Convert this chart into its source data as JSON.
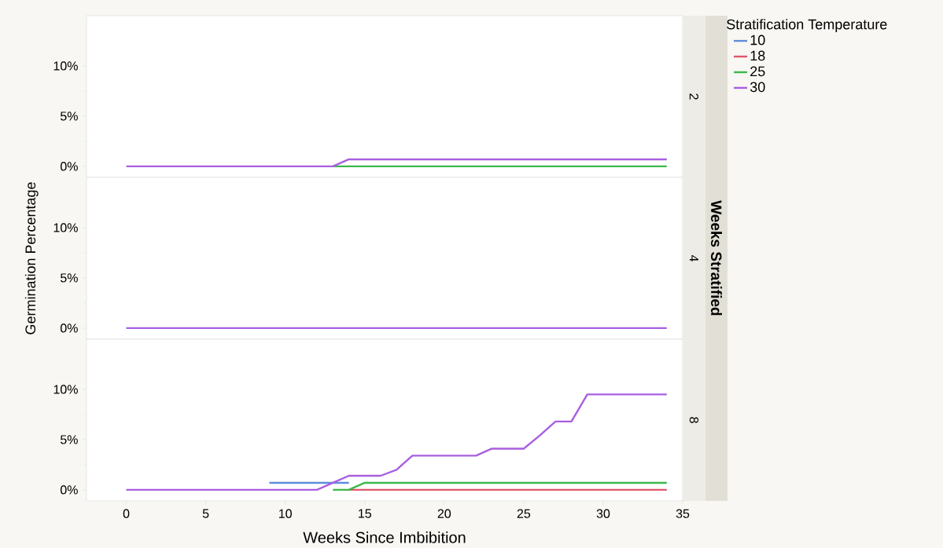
{
  "chart_data": [
    {
      "type": "line",
      "annotations": [
        "2"
      ],
      "legend_title": "Stratification Temperature",
      "legend": "right",
      "tick_labels": "y",
      "x": [
        0,
        1,
        2,
        3,
        4,
        5,
        6,
        7,
        8,
        9,
        10,
        11,
        12,
        13,
        14,
        15,
        16,
        17,
        18,
        19,
        20,
        21,
        22,
        23,
        24,
        25,
        26,
        27,
        28,
        29,
        30,
        31,
        32,
        33,
        34
      ],
      "xlim": [
        -2.5,
        35
      ],
      "ylim": [
        -1.1,
        15
      ],
      "yticks": [
        {
          "value": 0,
          "label": "0%"
        },
        {
          "value": 5,
          "label": "5%"
        },
        {
          "value": 10,
          "label": "10%"
        }
      ],
      "series": [
        {
          "name": "10",
          "color": "#5b8ddc",
          "values": [
            null,
            null,
            null,
            null,
            null,
            null,
            null,
            null,
            null,
            null,
            null,
            null,
            null,
            null,
            null,
            null,
            null,
            null,
            null,
            null,
            null,
            null,
            null,
            null,
            null,
            null,
            null,
            null,
            null,
            null,
            null,
            null,
            null,
            null,
            null
          ]
        },
        {
          "name": "18",
          "color": "#e0566a",
          "values": [
            null,
            null,
            null,
            null,
            null,
            null,
            null,
            null,
            null,
            null,
            null,
            null,
            null,
            null,
            null,
            null,
            null,
            null,
            null,
            null,
            null,
            null,
            null,
            null,
            null,
            null,
            null,
            null,
            null,
            null,
            null,
            null,
            null,
            null,
            null
          ]
        },
        {
          "name": "25",
          "color": "#3cb84a",
          "values": [
            null,
            null,
            null,
            null,
            null,
            null,
            null,
            null,
            null,
            null,
            null,
            null,
            null,
            0,
            0,
            0,
            0,
            0,
            0,
            0,
            0,
            0,
            0,
            0,
            0,
            0,
            0,
            0,
            0,
            0,
            0,
            0,
            0,
            0,
            0
          ]
        },
        {
          "name": "30",
          "color": "#a85fe0",
          "values": [
            0,
            0,
            0,
            0,
            0,
            0,
            0,
            0,
            0,
            0,
            0,
            0,
            0,
            0,
            0.7,
            0.7,
            0.7,
            0.7,
            0.7,
            0.7,
            0.7,
            0.7,
            0.7,
            0.7,
            0.7,
            0.7,
            0.7,
            0.7,
            0.7,
            0.7,
            0.7,
            0.7,
            0.7,
            0.7,
            0.7
          ]
        }
      ]
    },
    {
      "type": "line",
      "ylabel": "Germination Percentage",
      "annotations": [
        "4",
        "Weeks Stratified"
      ],
      "tick_labels": "y",
      "x": [
        0,
        1,
        2,
        3,
        4,
        5,
        6,
        7,
        8,
        9,
        10,
        11,
        12,
        13,
        14,
        15,
        16,
        17,
        18,
        19,
        20,
        21,
        22,
        23,
        24,
        25,
        26,
        27,
        28,
        29,
        30,
        31,
        32,
        33,
        34
      ],
      "xlim": [
        -2.5,
        35
      ],
      "ylim": [
        -1.1,
        15
      ],
      "yticks": [
        {
          "value": 0,
          "label": "0%"
        },
        {
          "value": 5,
          "label": "5%"
        },
        {
          "value": 10,
          "label": "10%"
        }
      ],
      "series": [
        {
          "color": "#a85fe0",
          "values": [
            0,
            0,
            0,
            0,
            0,
            0,
            0,
            0,
            0,
            0,
            0,
            0,
            0,
            0,
            0,
            0,
            0,
            0,
            0,
            0,
            0,
            0,
            0,
            0,
            0,
            0,
            0,
            0,
            0,
            0,
            0,
            0,
            0,
            0,
            0
          ]
        }
      ]
    },
    {
      "type": "line",
      "annotations": [
        "8"
      ],
      "xlabel": "Weeks Since Imbibition",
      "x": [
        0,
        1,
        2,
        3,
        4,
        5,
        6,
        7,
        8,
        9,
        10,
        11,
        12,
        13,
        14,
        15,
        16,
        17,
        18,
        19,
        20,
        21,
        22,
        23,
        24,
        25,
        26,
        27,
        28,
        29,
        30,
        31,
        32,
        33,
        34
      ],
      "xlim": [
        -2.5,
        35
      ],
      "ylim": [
        -1.1,
        15
      ],
      "xticks": [
        0,
        5,
        10,
        15,
        20,
        25,
        30,
        35
      ],
      "yticks": [
        {
          "value": 0,
          "label": "0%"
        },
        {
          "value": 5,
          "label": "5%"
        },
        {
          "value": 10,
          "label": "10%"
        }
      ],
      "series": [
        {
          "color": "#5b8ddc",
          "values": [
            null,
            null,
            null,
            null,
            null,
            null,
            null,
            null,
            null,
            0.7,
            0.7,
            0.7,
            0.7,
            0.7,
            0.7,
            null,
            null,
            null,
            null,
            null,
            null,
            null,
            null,
            null,
            null,
            null,
            null,
            null,
            null,
            null,
            null,
            null,
            null,
            null,
            null
          ]
        },
        {
          "color": "#e0566a",
          "values": [
            null,
            null,
            null,
            null,
            null,
            null,
            null,
            null,
            null,
            null,
            null,
            null,
            null,
            null,
            0,
            0,
            0,
            0,
            0,
            0,
            0,
            0,
            0,
            0,
            0,
            0,
            0,
            0,
            0,
            0,
            0,
            0,
            0,
            0,
            0
          ]
        },
        {
          "color": "#3cb84a",
          "values": [
            null,
            null,
            null,
            null,
            null,
            null,
            null,
            null,
            null,
            null,
            null,
            null,
            null,
            0,
            0,
            0.7,
            0.7,
            0.7,
            0.7,
            0.7,
            0.7,
            0.7,
            0.7,
            0.7,
            0.7,
            0.7,
            0.7,
            0.7,
            0.7,
            0.7,
            0.7,
            0.7,
            0.7,
            0.7,
            0.7
          ]
        },
        {
          "color": "#a85fe0",
          "values": [
            0,
            0,
            0,
            0,
            0,
            0,
            0,
            0,
            0,
            0,
            0,
            0,
            0,
            0.7,
            1.4,
            1.4,
            1.4,
            2.0,
            3.4,
            3.4,
            3.4,
            3.4,
            3.4,
            4.1,
            4.1,
            4.1,
            5.4,
            6.8,
            6.8,
            9.5,
            9.5,
            9.5,
            9.5,
            9.5,
            9.5
          ]
        }
      ]
    }
  ]
}
